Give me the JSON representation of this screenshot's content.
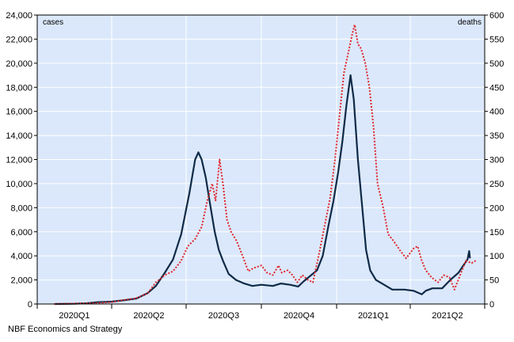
{
  "chart_data": {
    "type": "line",
    "dual_axis": true,
    "left_axis": {
      "label": "cases",
      "ylim": [
        0,
        24000
      ],
      "ticks": [
        0,
        2000,
        4000,
        6000,
        8000,
        10000,
        12000,
        14000,
        16000,
        18000,
        20000,
        22000,
        24000
      ],
      "tick_labels": [
        "0",
        "2,000",
        "4,000",
        "6,000",
        "8,000",
        "10,000",
        "12,000",
        "14,000",
        "16,000",
        "18,000",
        "20,000",
        "22,000",
        "24,000"
      ]
    },
    "right_axis": {
      "label": "deaths",
      "ylim": [
        0,
        600
      ],
      "ticks": [
        0,
        50,
        100,
        150,
        200,
        250,
        300,
        350,
        400,
        450,
        500,
        550,
        600
      ],
      "tick_labels": [
        "0",
        "50",
        "100",
        "150",
        "200",
        "250",
        "300",
        "350",
        "400",
        "450",
        "500",
        "550",
        "600"
      ]
    },
    "x_axis": {
      "range": [
        "2020-01-01",
        "2021-07-01"
      ],
      "quarter_starts": [
        "2020-01-01",
        "2020-04-01",
        "2020-07-01",
        "2020-10-01",
        "2021-01-01",
        "2021-04-01",
        "2021-07-01"
      ],
      "quarter_labels": [
        "2020Q1",
        "2020Q2",
        "2020Q3",
        "2020Q4",
        "2021Q1",
        "2021Q2"
      ]
    },
    "grid": true,
    "background": "#dbe8fb",
    "series": [
      {
        "axis": "left",
        "color": "#0e2a47",
        "style": "solid",
        "points": [
          [
            "2020-01-22",
            0
          ],
          [
            "2020-02-15",
            20
          ],
          [
            "2020-03-01",
            60
          ],
          [
            "2020-03-15",
            150
          ],
          [
            "2020-04-01",
            200
          ],
          [
            "2020-04-15",
            300
          ],
          [
            "2020-05-01",
            450
          ],
          [
            "2020-05-15",
            900
          ],
          [
            "2020-05-25",
            1500
          ],
          [
            "2020-06-05",
            2600
          ],
          [
            "2020-06-15",
            3700
          ],
          [
            "2020-06-25",
            5800
          ],
          [
            "2020-07-05",
            9200
          ],
          [
            "2020-07-12",
            12000
          ],
          [
            "2020-07-16",
            12600
          ],
          [
            "2020-07-20",
            12000
          ],
          [
            "2020-07-25",
            10500
          ],
          [
            "2020-07-31",
            8000
          ],
          [
            "2020-08-05",
            6000
          ],
          [
            "2020-08-10",
            4500
          ],
          [
            "2020-08-15",
            3600
          ],
          [
            "2020-08-22",
            2500
          ],
          [
            "2020-08-31",
            2000
          ],
          [
            "2020-09-10",
            1700
          ],
          [
            "2020-09-20",
            1500
          ],
          [
            "2020-10-01",
            1600
          ],
          [
            "2020-10-15",
            1500
          ],
          [
            "2020-10-25",
            1700
          ],
          [
            "2020-11-05",
            1600
          ],
          [
            "2020-11-15",
            1450
          ],
          [
            "2020-11-22",
            1900
          ],
          [
            "2020-12-01",
            2400
          ],
          [
            "2020-12-08",
            2800
          ],
          [
            "2020-12-15",
            4000
          ],
          [
            "2020-12-22",
            6500
          ],
          [
            "2020-12-28",
            8500
          ],
          [
            "2021-01-03",
            11000
          ],
          [
            "2021-01-08",
            13500
          ],
          [
            "2021-01-13",
            16500
          ],
          [
            "2021-01-18",
            19000
          ],
          [
            "2021-01-22",
            17000
          ],
          [
            "2021-01-27",
            12000
          ],
          [
            "2021-02-02",
            7500
          ],
          [
            "2021-02-06",
            4500
          ],
          [
            "2021-02-11",
            2800
          ],
          [
            "2021-02-18",
            2000
          ],
          [
            "2021-02-28",
            1600
          ],
          [
            "2021-03-10",
            1200
          ],
          [
            "2021-03-25",
            1200
          ],
          [
            "2021-04-05",
            1100
          ],
          [
            "2021-04-15",
            800
          ],
          [
            "2021-04-20",
            1100
          ],
          [
            "2021-04-28",
            1300
          ],
          [
            "2021-05-10",
            1300
          ],
          [
            "2021-05-20",
            2000
          ],
          [
            "2021-05-30",
            2600
          ],
          [
            "2021-06-05",
            3200
          ],
          [
            "2021-06-10",
            3700
          ],
          [
            "2021-06-12",
            4400
          ],
          [
            "2021-06-13",
            3800
          ]
        ]
      },
      {
        "axis": "right",
        "color": "#e0262c",
        "style": "dotted",
        "points": [
          [
            "2020-01-22",
            0
          ],
          [
            "2020-03-15",
            2
          ],
          [
            "2020-04-01",
            4
          ],
          [
            "2020-04-15",
            8
          ],
          [
            "2020-05-01",
            12
          ],
          [
            "2020-05-15",
            22
          ],
          [
            "2020-05-25",
            45
          ],
          [
            "2020-06-05",
            60
          ],
          [
            "2020-06-15",
            68
          ],
          [
            "2020-06-25",
            90
          ],
          [
            "2020-07-03",
            120
          ],
          [
            "2020-07-12",
            135
          ],
          [
            "2020-07-20",
            160
          ],
          [
            "2020-07-27",
            215
          ],
          [
            "2020-08-02",
            250
          ],
          [
            "2020-08-06",
            215
          ],
          [
            "2020-08-11",
            300
          ],
          [
            "2020-08-15",
            250
          ],
          [
            "2020-08-20",
            175
          ],
          [
            "2020-08-25",
            150
          ],
          [
            "2020-09-01",
            130
          ],
          [
            "2020-09-08",
            100
          ],
          [
            "2020-09-15",
            68
          ],
          [
            "2020-09-22",
            75
          ],
          [
            "2020-10-01",
            80
          ],
          [
            "2020-10-08",
            65
          ],
          [
            "2020-10-15",
            60
          ],
          [
            "2020-10-22",
            80
          ],
          [
            "2020-10-26",
            65
          ],
          [
            "2020-11-02",
            70
          ],
          [
            "2020-11-08",
            60
          ],
          [
            "2020-11-14",
            45
          ],
          [
            "2020-11-20",
            60
          ],
          [
            "2020-11-27",
            50
          ],
          [
            "2020-12-03",
            45
          ],
          [
            "2020-12-10",
            100
          ],
          [
            "2020-12-17",
            160
          ],
          [
            "2020-12-24",
            220
          ],
          [
            "2020-12-30",
            300
          ],
          [
            "2021-01-05",
            400
          ],
          [
            "2021-01-10",
            480
          ],
          [
            "2021-01-15",
            520
          ],
          [
            "2021-01-20",
            560
          ],
          [
            "2021-01-23",
            580
          ],
          [
            "2021-01-27",
            540
          ],
          [
            "2021-01-31",
            530
          ],
          [
            "2021-02-05",
            500
          ],
          [
            "2021-02-10",
            450
          ],
          [
            "2021-02-15",
            370
          ],
          [
            "2021-02-20",
            250
          ],
          [
            "2021-02-27",
            200
          ],
          [
            "2021-03-05",
            145
          ],
          [
            "2021-03-12",
            130
          ],
          [
            "2021-03-20",
            110
          ],
          [
            "2021-03-27",
            95
          ],
          [
            "2021-04-05",
            115
          ],
          [
            "2021-04-10",
            120
          ],
          [
            "2021-04-15",
            90
          ],
          [
            "2021-04-20",
            70
          ],
          [
            "2021-04-27",
            55
          ],
          [
            "2021-05-05",
            45
          ],
          [
            "2021-05-12",
            60
          ],
          [
            "2021-05-19",
            55
          ],
          [
            "2021-05-25",
            30
          ],
          [
            "2021-06-01",
            60
          ],
          [
            "2021-06-08",
            90
          ],
          [
            "2021-06-15",
            85
          ],
          [
            "2021-06-20",
            90
          ]
        ]
      }
    ]
  },
  "footer": {
    "source": "NBF Economics and Strategy"
  }
}
